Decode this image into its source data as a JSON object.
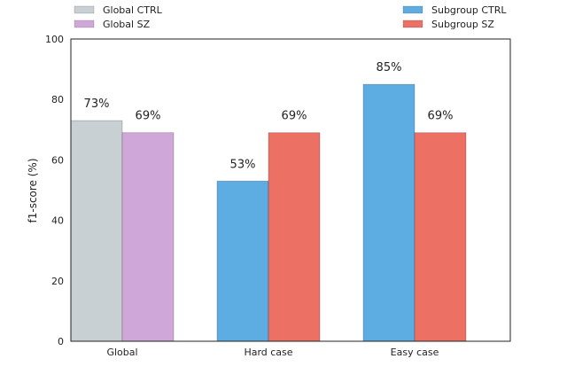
{
  "chart_data": {
    "type": "bar",
    "title": "",
    "xlabel": "",
    "ylabel": "f1-score (%)",
    "ylim": [
      0,
      100
    ],
    "yticks": [
      0,
      20,
      40,
      60,
      80,
      100
    ],
    "categories": [
      "Global",
      "Hard case",
      "Easy case"
    ],
    "grid": false,
    "bars": [
      {
        "category": "Global",
        "series": "Global CTRL",
        "value": 73,
        "label": "73%"
      },
      {
        "category": "Global",
        "series": "Global SZ",
        "value": 69,
        "label": "69%"
      },
      {
        "category": "Hard case",
        "series": "Subgroup CTRL",
        "value": 53,
        "label": "53%"
      },
      {
        "category": "Hard case",
        "series": "Subgroup SZ",
        "value": 69,
        "label": "69%"
      },
      {
        "category": "Easy case",
        "series": "Subgroup CTRL",
        "value": 85,
        "label": "85%"
      },
      {
        "category": "Easy case",
        "series": "Subgroup SZ",
        "value": 69,
        "label": "69%"
      }
    ],
    "legend": [
      {
        "name": "Global CTRL",
        "color": "#c8d0d3",
        "placement": "top-left"
      },
      {
        "name": "Global SZ",
        "color": "#cfa8d9",
        "placement": "top-left"
      },
      {
        "name": "Subgroup CTRL",
        "color": "#5dade2",
        "placement": "top-right"
      },
      {
        "name": "Subgroup SZ",
        "color": "#ec7063",
        "placement": "top-right"
      }
    ],
    "colors": {
      "Global CTRL": "#c8d0d3",
      "Global SZ": "#cfa8d9",
      "Subgroup CTRL": "#5dade2",
      "Subgroup SZ": "#ec7063"
    }
  }
}
